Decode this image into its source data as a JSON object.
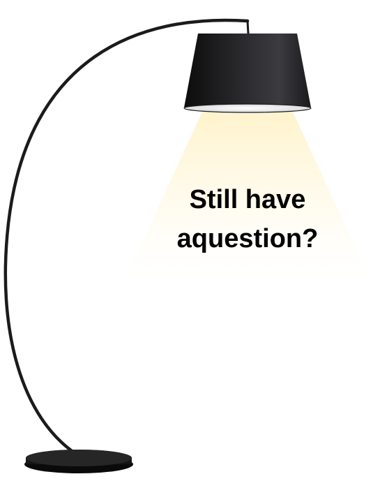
{
  "headline": {
    "line1": "Still have",
    "line2": "aquestion?"
  },
  "colors": {
    "lamp_body": "#1b1b1b",
    "shade_dark": "#0f0f0f",
    "shade_mid": "#3a3a3e",
    "light_glow": "#fff6d6",
    "text": "#000000",
    "background": "#ffffff"
  },
  "icons": {
    "lamp": "floor-lamp-icon"
  }
}
